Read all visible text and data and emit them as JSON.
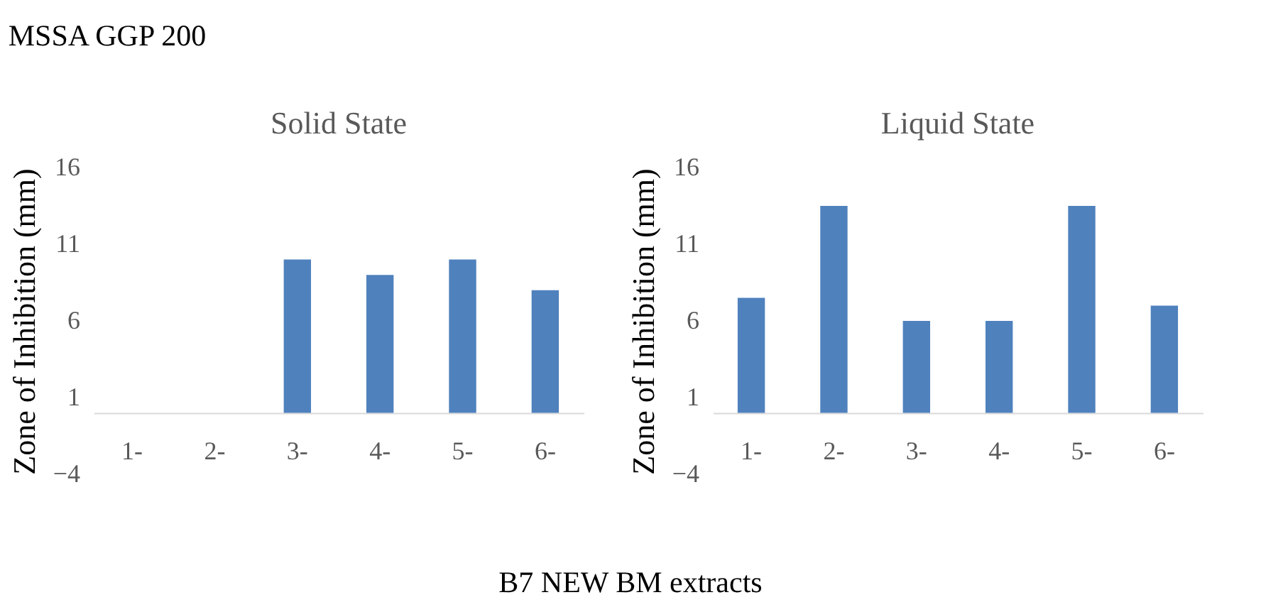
{
  "chart_data": [
    {
      "type": "bar",
      "title": "Solid State",
      "annotations": [
        "MSSA GGP 200"
      ],
      "xlabel": "B7 NEW BM  extracts",
      "ylabel": "Zone of Inhibition (mm)",
      "categories": [
        "1-",
        "2-",
        "3-",
        "4-",
        "5-",
        "6-"
      ],
      "values": [
        0,
        0,
        10,
        9,
        10,
        8
      ],
      "color": "#4f81bd",
      "ylim": [
        -4,
        16
      ],
      "yticks": [
        -4,
        1,
        6,
        11,
        16
      ]
    },
    {
      "type": "bar",
      "title": "Liquid State",
      "ylabel": "Zone of Inhibition (mm)",
      "categories": [
        "1-",
        "2-",
        "3-",
        "4-",
        "5-",
        "6-"
      ],
      "values": [
        7.5,
        13.5,
        6,
        6,
        13.5,
        7
      ],
      "color": "#4f81bd",
      "ylim": [
        -4,
        16
      ],
      "yticks": [
        -4,
        1,
        6,
        11,
        16
      ]
    }
  ]
}
